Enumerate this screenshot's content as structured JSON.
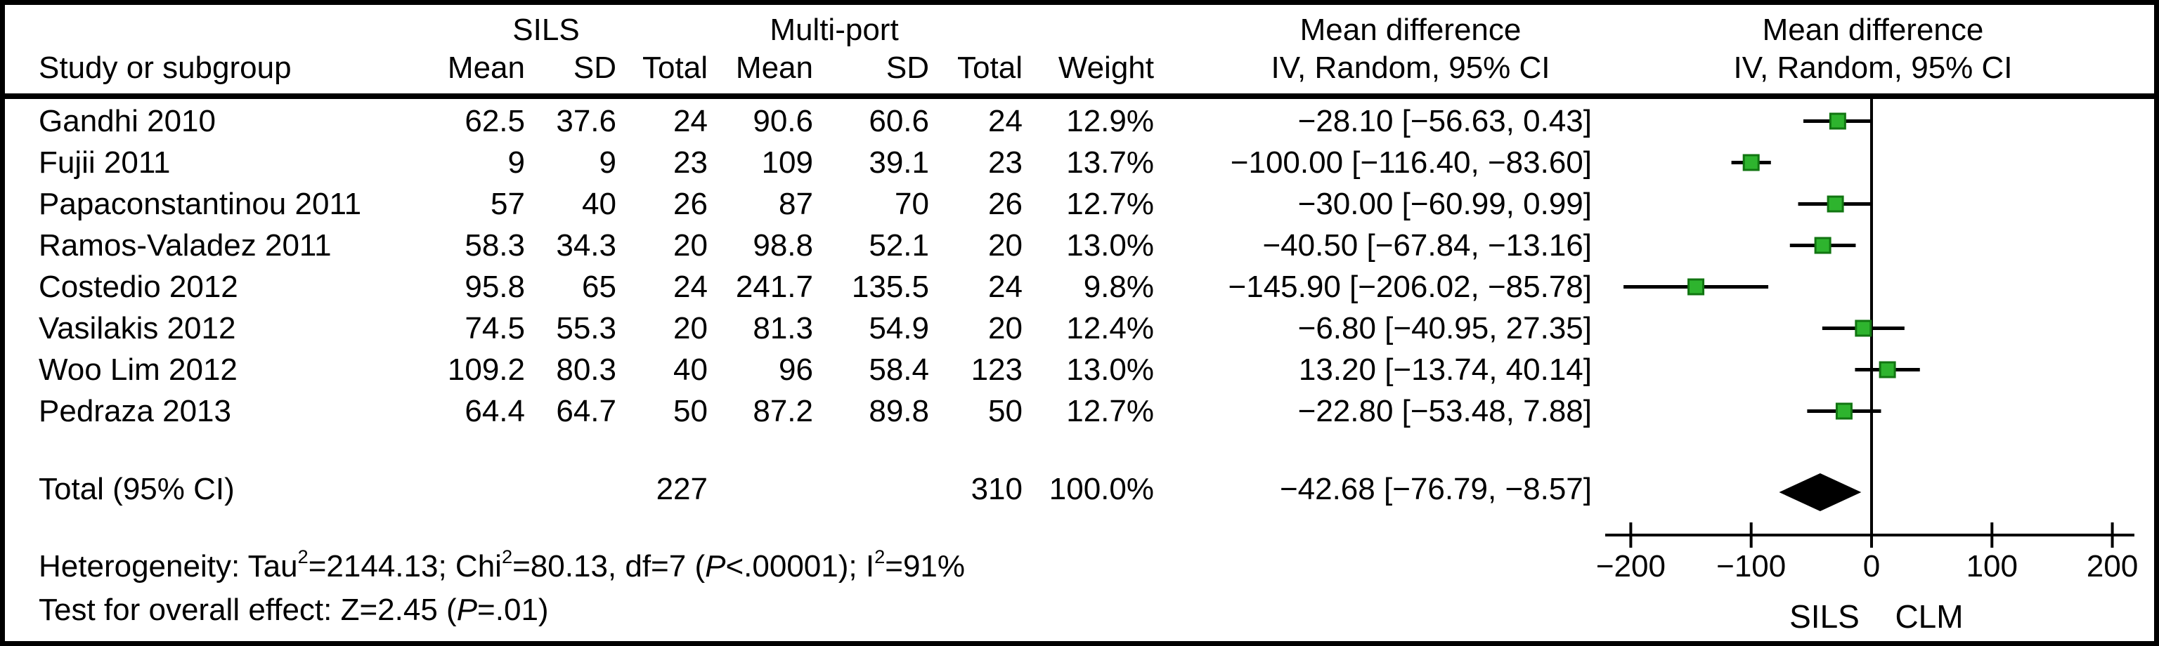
{
  "header": {
    "study_col": "Study or subgroup",
    "group1": "SILS",
    "group2": "Multi-port",
    "mean": "Mean",
    "sd": "SD",
    "total": "Total",
    "weight": "Weight",
    "md_title": "Mean difference",
    "md_sub": "IV, Random, 95% CI"
  },
  "rows": [
    {
      "name": "Gandhi 2010",
      "sils_mean": "62.5",
      "sils_sd": "37.6",
      "sils_total": "24",
      "mp_mean": "90.6",
      "mp_sd": "60.6",
      "mp_total": "24",
      "weight": "12.9%",
      "ci_text": "−28.10 [−56.63, 0.43]"
    },
    {
      "name": "Fujii 2011",
      "sils_mean": "9",
      "sils_sd": "9",
      "sils_total": "23",
      "mp_mean": "109",
      "mp_sd": "39.1",
      "mp_total": "23",
      "weight": "13.7%",
      "ci_text": "−100.00 [−116.40, −83.60]"
    },
    {
      "name": "Papaconstantinou 2011",
      "sils_mean": "57",
      "sils_sd": "40",
      "sils_total": "26",
      "mp_mean": "87",
      "mp_sd": "70",
      "mp_total": "26",
      "weight": "12.7%",
      "ci_text": "−30.00 [−60.99, 0.99]"
    },
    {
      "name": "Ramos-Valadez 2011",
      "sils_mean": "58.3",
      "sils_sd": "34.3",
      "sils_total": "20",
      "mp_mean": "98.8",
      "mp_sd": "52.1",
      "mp_total": "20",
      "weight": "13.0%",
      "ci_text": "−40.50 [−67.84, −13.16]"
    },
    {
      "name": "Costedio 2012",
      "sils_mean": "95.8",
      "sils_sd": "65",
      "sils_total": "24",
      "mp_mean": "241.7",
      "mp_sd": "135.5",
      "mp_total": "24",
      "weight": "9.8%",
      "ci_text": "−145.90 [−206.02, −85.78]"
    },
    {
      "name": "Vasilakis 2012",
      "sils_mean": "74.5",
      "sils_sd": "55.3",
      "sils_total": "20",
      "mp_mean": "81.3",
      "mp_sd": "54.9",
      "mp_total": "20",
      "weight": "12.4%",
      "ci_text": "−6.80 [−40.95, 27.35]"
    },
    {
      "name": "Woo Lim 2012",
      "sils_mean": "109.2",
      "sils_sd": "80.3",
      "sils_total": "40",
      "mp_mean": "96",
      "mp_sd": "58.4",
      "mp_total": "123",
      "weight": "13.0%",
      "ci_text": "13.20 [−13.74, 40.14]"
    },
    {
      "name": "Pedraza 2013",
      "sils_mean": "64.4",
      "sils_sd": "64.7",
      "sils_total": "50",
      "mp_mean": "87.2",
      "mp_sd": "89.8",
      "mp_total": "50",
      "weight": "12.7%",
      "ci_text": "−22.80 [−53.48, 7.88]"
    }
  ],
  "total_row": {
    "label": "Total (95% CI)",
    "sils_total": "227",
    "mp_total": "310",
    "weight": "100.0%",
    "ci_text": "−42.68 [−76.79, −8.57]"
  },
  "footnotes": {
    "heterogeneity_parts": [
      {
        "t": "Heterogeneity: Tau"
      },
      {
        "t": "2",
        "sup": true
      },
      {
        "t": "=2144.13; Chi"
      },
      {
        "t": "2",
        "sup": true
      },
      {
        "t": "=80.13, df=7 ("
      },
      {
        "t": "P",
        "i": true
      },
      {
        "t": "<.00001); I"
      },
      {
        "t": "2",
        "sup": true
      },
      {
        "t": "=91%"
      }
    ],
    "overall_parts": [
      {
        "t": "Test for overall effect: Z=2.45 ("
      },
      {
        "t": "P",
        "i": true
      },
      {
        "t": "=.01)"
      }
    ]
  },
  "axis": {
    "tick_labels": [
      "−200",
      "−100",
      "0",
      "100",
      "200"
    ],
    "left_label": "SILS",
    "right_label": "CLM"
  },
  "colors": {
    "marker_fill": "#2eb42e",
    "marker_border": "#117511",
    "line": "#000000",
    "diamond": "#000000"
  },
  "chart_data": {
    "type": "forest",
    "title": "Mean difference",
    "subtitle": "IV, Random, 95% CI",
    "xlim": [
      -200,
      200
    ],
    "x_ticks": [
      -200,
      -100,
      0,
      100,
      200
    ],
    "zero_line": 0,
    "axis_left_group": "SILS",
    "axis_right_group": "CLM",
    "points": [
      {
        "label": "Gandhi 2010",
        "md": -28.1,
        "ci": [
          -56.63,
          0.43
        ]
      },
      {
        "label": "Fujii 2011",
        "md": -100.0,
        "ci": [
          -116.4,
          -83.6
        ]
      },
      {
        "label": "Papaconstantinou 2011",
        "md": -30.0,
        "ci": [
          -60.99,
          0.99
        ]
      },
      {
        "label": "Ramos-Valadez 2011",
        "md": -40.5,
        "ci": [
          -67.84,
          -13.16
        ]
      },
      {
        "label": "Costedio 2012",
        "md": -145.9,
        "ci": [
          -206.02,
          -85.78
        ]
      },
      {
        "label": "Vasilakis 2012",
        "md": -6.8,
        "ci": [
          -40.95,
          27.35
        ]
      },
      {
        "label": "Woo Lim 2012",
        "md": 13.2,
        "ci": [
          -13.74,
          40.14
        ]
      },
      {
        "label": "Pedraza 2013",
        "md": -22.8,
        "ci": [
          -53.48,
          7.88
        ]
      }
    ],
    "total": {
      "label": "Total (95% CI)",
      "md": -42.68,
      "ci": [
        -76.79,
        -8.57
      ]
    }
  }
}
